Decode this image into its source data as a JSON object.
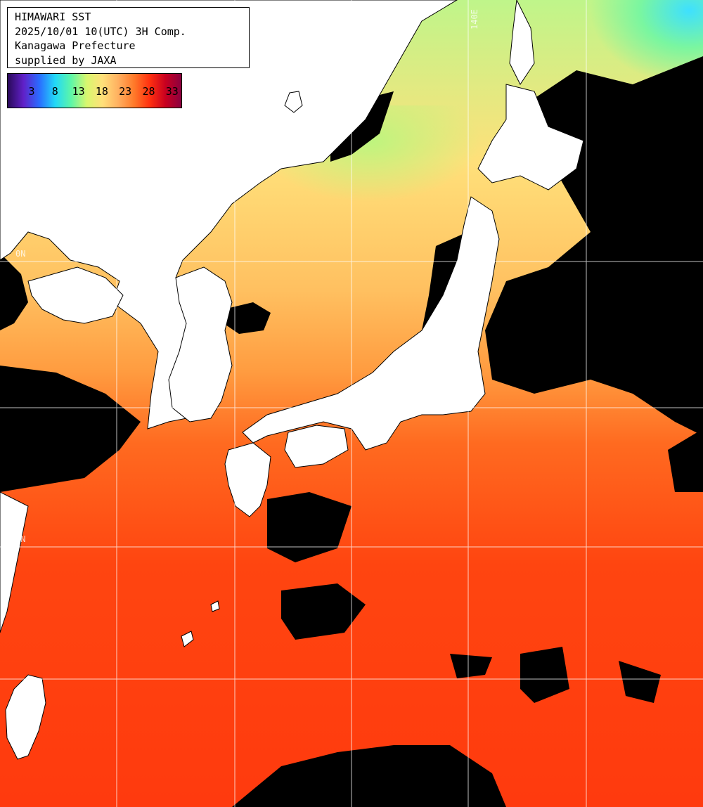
{
  "header": {
    "line1": "HIMAWARI SST",
    "line2": "2025/10/01 10(UTC) 3H Comp.",
    "line3": "Kanagawa Prefecture",
    "line4": "supplied by JAXA"
  },
  "legend": {
    "ticks": [
      "3",
      "8",
      "13",
      "18",
      "23",
      "28",
      "33"
    ],
    "colors": [
      "#2a0a5a",
      "#6020c8",
      "#2a6cff",
      "#22d8f8",
      "#5cf6a8",
      "#d8f76e",
      "#ffe07a",
      "#ffb060",
      "#ff7a2a",
      "#ff3010",
      "#c80020",
      "#8a0040"
    ]
  },
  "grid_labels": {
    "lon_140": "140E",
    "lat_n": "0N",
    "lat_s": "0N"
  },
  "colors": {
    "land": "#ffffff",
    "no_data": "#000000",
    "sea_cold": "#6ef08a",
    "sea_warm": "#ffe07a",
    "sea_hot": "#ff3a10",
    "grid": "#ffffff"
  }
}
